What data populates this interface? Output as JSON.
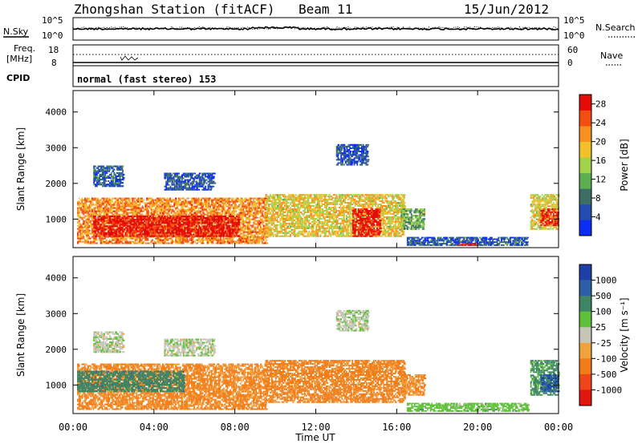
{
  "header": {
    "station": "Zhongshan Station (fitACF)",
    "beam": "Beam 11",
    "date": "15/Jun/2012"
  },
  "noise_panel": {
    "left_label": "N.Sky",
    "left_ticks": [
      "10^5",
      "10^0"
    ],
    "right_ticks": [
      "10^5",
      "10^0"
    ],
    "right_label": "N.Search"
  },
  "freq_panel": {
    "left_label_line1": "Freq.",
    "left_label_line2": "[MHz]",
    "left_ticks": [
      "18",
      "8"
    ],
    "right_ticks": [
      "60",
      "0"
    ],
    "right_label": "Nave"
  },
  "cpid_panel": {
    "label": "CPID",
    "program": "normal (fast stereo) 153"
  },
  "colors": {
    "ring": "#000000",
    "power_scale": [
      "#0b2cf5",
      "#234bb0",
      "#3d6e66",
      "#5cae50",
      "#a2d14a",
      "#f2c02a",
      "#f79020",
      "#f24e12",
      "#e50a08"
    ],
    "velocity_scale": [
      "#1c3fa8",
      "#2e5ea6",
      "#3f8464",
      "#5fc03a",
      "#c5c6b6",
      "#f0a23e",
      "#f27d18",
      "#f0451a",
      "#e0150e"
    ]
  },
  "chart_data": [
    {
      "type": "heatmap",
      "panel": "power",
      "ylabel": "Slant Range [km]",
      "y_ticks": [
        1000,
        2000,
        3000,
        4000
      ],
      "ylim": [
        200,
        4600
      ],
      "x_ticks": [
        "00:00",
        "04:00",
        "08:00",
        "12:00",
        "16:00",
        "20:00",
        "00:00"
      ],
      "xlim_hours": [
        0,
        24
      ],
      "colorbar": {
        "label": "Power [dB]",
        "ticks": [
          "4",
          "8",
          "12",
          "16",
          "20",
          "24",
          "28"
        ],
        "range": [
          0,
          30
        ]
      },
      "regions": [
        {
          "t0": 0.2,
          "t1": 9.6,
          "r0": 300,
          "r1": 1600,
          "value": 22
        },
        {
          "t0": 1.0,
          "t1": 8.2,
          "r0": 500,
          "r1": 1100,
          "value": 29
        },
        {
          "t0": 9.5,
          "t1": 16.4,
          "r0": 500,
          "r1": 1700,
          "value": 18
        },
        {
          "t0": 13.8,
          "t1": 15.2,
          "r0": 500,
          "r1": 1300,
          "value": 29
        },
        {
          "t0": 16.2,
          "t1": 17.4,
          "r0": 700,
          "r1": 1300,
          "value": 12
        },
        {
          "t0": 16.5,
          "t1": 22.5,
          "r0": 250,
          "r1": 500,
          "value": 6
        },
        {
          "t0": 19.0,
          "t1": 20.0,
          "r0": 250,
          "r1": 330,
          "value": 28
        },
        {
          "t0": 1.0,
          "t1": 2.5,
          "r0": 1900,
          "r1": 2500,
          "value": 6
        },
        {
          "t0": 4.5,
          "t1": 7.0,
          "r0": 1800,
          "r1": 2300,
          "value": 5
        },
        {
          "t0": 13.0,
          "t1": 14.6,
          "r0": 2500,
          "r1": 3100,
          "value": 5
        },
        {
          "t0": 22.6,
          "t1": 24.0,
          "r0": 700,
          "r1": 1700,
          "value": 18
        },
        {
          "t0": 23.1,
          "t1": 24.0,
          "r0": 800,
          "r1": 1300,
          "value": 27
        }
      ]
    },
    {
      "type": "heatmap",
      "panel": "velocity",
      "ylabel": "Slant Range [km]",
      "y_ticks": [
        1000,
        2000,
        3000,
        4000
      ],
      "ylim": [
        200,
        4600
      ],
      "x_ticks": [
        "00:00",
        "04:00",
        "08:00",
        "12:00",
        "16:00",
        "20:00",
        "00:00"
      ],
      "xlim_hours": [
        0,
        24
      ],
      "xlabel": "Time UT",
      "colorbar": {
        "label": "Velocity [m s⁻¹]",
        "ticks": [
          "1000",
          "500",
          "100",
          "25",
          "-25",
          "-100",
          "-500",
          "-1000"
        ]
      },
      "regions": [
        {
          "t0": 0.2,
          "t1": 9.6,
          "r0": 300,
          "r1": 1600,
          "value": -150
        },
        {
          "t0": 0.2,
          "t1": 5.5,
          "r0": 800,
          "r1": 1400,
          "value": 300
        },
        {
          "t0": 9.5,
          "t1": 16.4,
          "r0": 500,
          "r1": 1700,
          "value": -180
        },
        {
          "t0": 16.2,
          "t1": 17.4,
          "r0": 700,
          "r1": 1300,
          "value": -120
        },
        {
          "t0": 16.5,
          "t1": 22.5,
          "r0": 250,
          "r1": 500,
          "value": 60
        },
        {
          "t0": 1.0,
          "t1": 2.5,
          "r0": 1900,
          "r1": 2500,
          "value": 10
        },
        {
          "t0": 4.5,
          "t1": 7.0,
          "r0": 1800,
          "r1": 2300,
          "value": 10
        },
        {
          "t0": 13.0,
          "t1": 14.6,
          "r0": 2500,
          "r1": 3100,
          "value": 10
        },
        {
          "t0": 22.6,
          "t1": 24.0,
          "r0": 700,
          "r1": 1700,
          "value": 150
        },
        {
          "t0": 23.1,
          "t1": 24.0,
          "r0": 800,
          "r1": 1300,
          "value": 800
        }
      ]
    }
  ]
}
